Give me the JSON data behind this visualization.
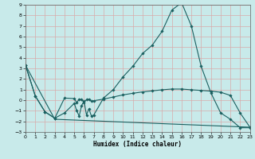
{
  "xlabel": "Humidex (Indice chaleur)",
  "bg_color": "#c8eaea",
  "line_color": "#1a6060",
  "grid_color": "#d8aaaa",
  "xlim": [
    0,
    23
  ],
  "ylim": [
    -3,
    9
  ],
  "xticks": [
    0,
    1,
    2,
    3,
    4,
    5,
    6,
    7,
    8,
    9,
    10,
    11,
    12,
    13,
    14,
    15,
    16,
    17,
    18,
    19,
    20,
    21,
    22,
    23
  ],
  "yticks": [
    -3,
    -2,
    -1,
    0,
    1,
    2,
    3,
    4,
    5,
    6,
    7,
    8,
    9
  ],
  "curve1_x": [
    0,
    1,
    2,
    3,
    4,
    5,
    5.25,
    5.5,
    5.75,
    6,
    6.25,
    6.5,
    6.75,
    7,
    8,
    9,
    10,
    11,
    12,
    13,
    14,
    15,
    16,
    17,
    18,
    19,
    20,
    21,
    22,
    23
  ],
  "curve1_y": [
    3.3,
    0.4,
    -1.1,
    -1.7,
    -1.2,
    -0.3,
    -1.0,
    -1.5,
    -0.5,
    -0.1,
    -1.4,
    -0.8,
    -1.5,
    -1.4,
    0.2,
    1.0,
    2.2,
    3.2,
    4.4,
    5.2,
    6.5,
    8.5,
    9.2,
    7.0,
    3.2,
    0.7,
    -1.2,
    -1.8,
    -2.6,
    -2.6
  ],
  "curve2_x": [
    0,
    1,
    2,
    3,
    4,
    5,
    5.25,
    5.5,
    5.75,
    6,
    6.25,
    6.5,
    6.75,
    7,
    8,
    9,
    10,
    11,
    12,
    13,
    14,
    15,
    16,
    17,
    18,
    19,
    20,
    21,
    22,
    23
  ],
  "curve2_y": [
    3.3,
    0.4,
    -1.1,
    -1.7,
    0.2,
    0.15,
    -0.25,
    0.1,
    0.05,
    -0.2,
    0.05,
    0.1,
    -0.1,
    -0.05,
    0.1,
    0.3,
    0.5,
    0.65,
    0.78,
    0.88,
    0.98,
    1.05,
    1.05,
    0.98,
    0.92,
    0.85,
    0.75,
    0.45,
    -1.2,
    -2.55
  ],
  "curve3_x": [
    0,
    3,
    23
  ],
  "curve3_y": [
    3.3,
    -1.8,
    -2.55
  ]
}
